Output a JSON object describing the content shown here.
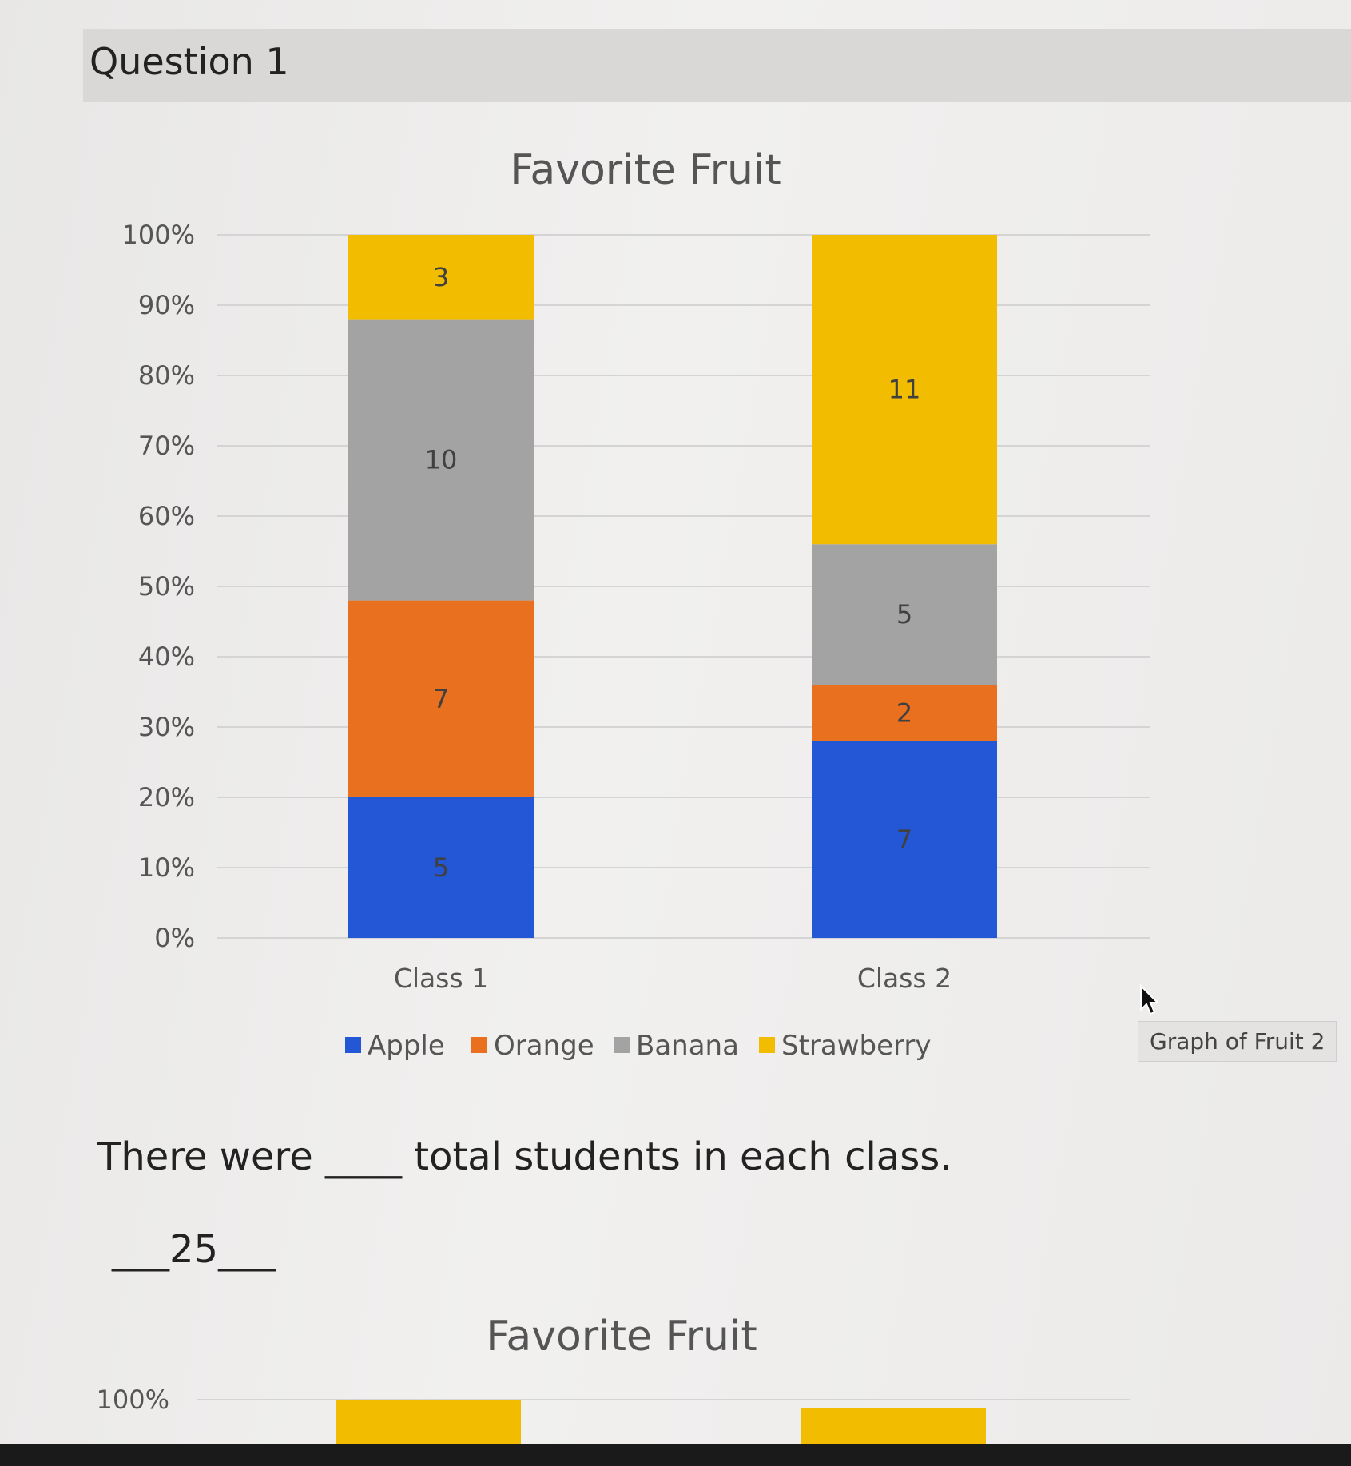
{
  "question": {
    "title": "Question 1",
    "prompt": "There were ____ total students in each class.",
    "answer": "___25___"
  },
  "graph_button": {
    "label": "Graph of Fruit 2"
  },
  "colors": {
    "apple": "#2457d6",
    "orange": "#e8701f",
    "banana": "#a3a3a3",
    "strawberry": "#f2bd00",
    "gridline": "#d4d4d4"
  },
  "icons": [
    "mouse-pointer-icon"
  ],
  "chart_data": [
    {
      "type": "bar",
      "stacked": "percent",
      "title": "Favorite Fruit",
      "categories": [
        "Class 1",
        "Class 2"
      ],
      "series": [
        {
          "name": "Apple",
          "values": [
            5,
            7
          ],
          "color": "#2457d6"
        },
        {
          "name": "Orange",
          "values": [
            7,
            2
          ],
          "color": "#e8701f"
        },
        {
          "name": "Banana",
          "values": [
            10,
            5
          ],
          "color": "#a3a3a3"
        },
        {
          "name": "Strawberry",
          "values": [
            3,
            11
          ],
          "color": "#f2bd00"
        }
      ],
      "y_ticks": [
        "0%",
        "10%",
        "20%",
        "30%",
        "40%",
        "50%",
        "60%",
        "70%",
        "80%",
        "90%",
        "100%"
      ],
      "ylim": [
        0,
        100
      ],
      "grid": true,
      "legend": "bottom",
      "data_labels": true
    },
    {
      "type": "bar",
      "stacked": "percent",
      "title": "Favorite Fruit",
      "partially_visible": true,
      "y_ticks_visible": [
        "100%"
      ],
      "ylim": [
        0,
        100
      ],
      "grid": true
    }
  ]
}
